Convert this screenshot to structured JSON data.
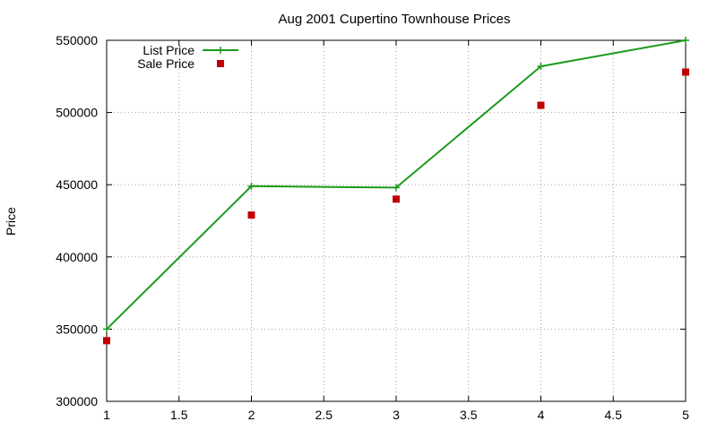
{
  "chart_data": {
    "type": "line",
    "title": "Aug 2001 Cupertino Townhouse Prices",
    "xlabel": "",
    "ylabel": "Price",
    "xlim": [
      1,
      5
    ],
    "ylim": [
      300000,
      550000
    ],
    "xticks": [
      1,
      1.5,
      2,
      2.5,
      3,
      3.5,
      4,
      4.5,
      5
    ],
    "yticks": [
      300000,
      350000,
      400000,
      450000,
      500000,
      550000
    ],
    "grid": true,
    "legend_position": "top-left",
    "series": [
      {
        "name": "List Price",
        "style": "linespoints",
        "marker": "plus",
        "color": "#1a9a1a",
        "x": [
          1,
          2,
          3,
          4,
          5
        ],
        "y": [
          350000,
          449000,
          448000,
          532000,
          550000
        ]
      },
      {
        "name": "Sale Price",
        "style": "points",
        "marker": "square",
        "color": "#c00000",
        "x": [
          1,
          2,
          3,
          4,
          5
        ],
        "y": [
          342000,
          429000,
          440000,
          505000,
          528000
        ]
      }
    ]
  }
}
